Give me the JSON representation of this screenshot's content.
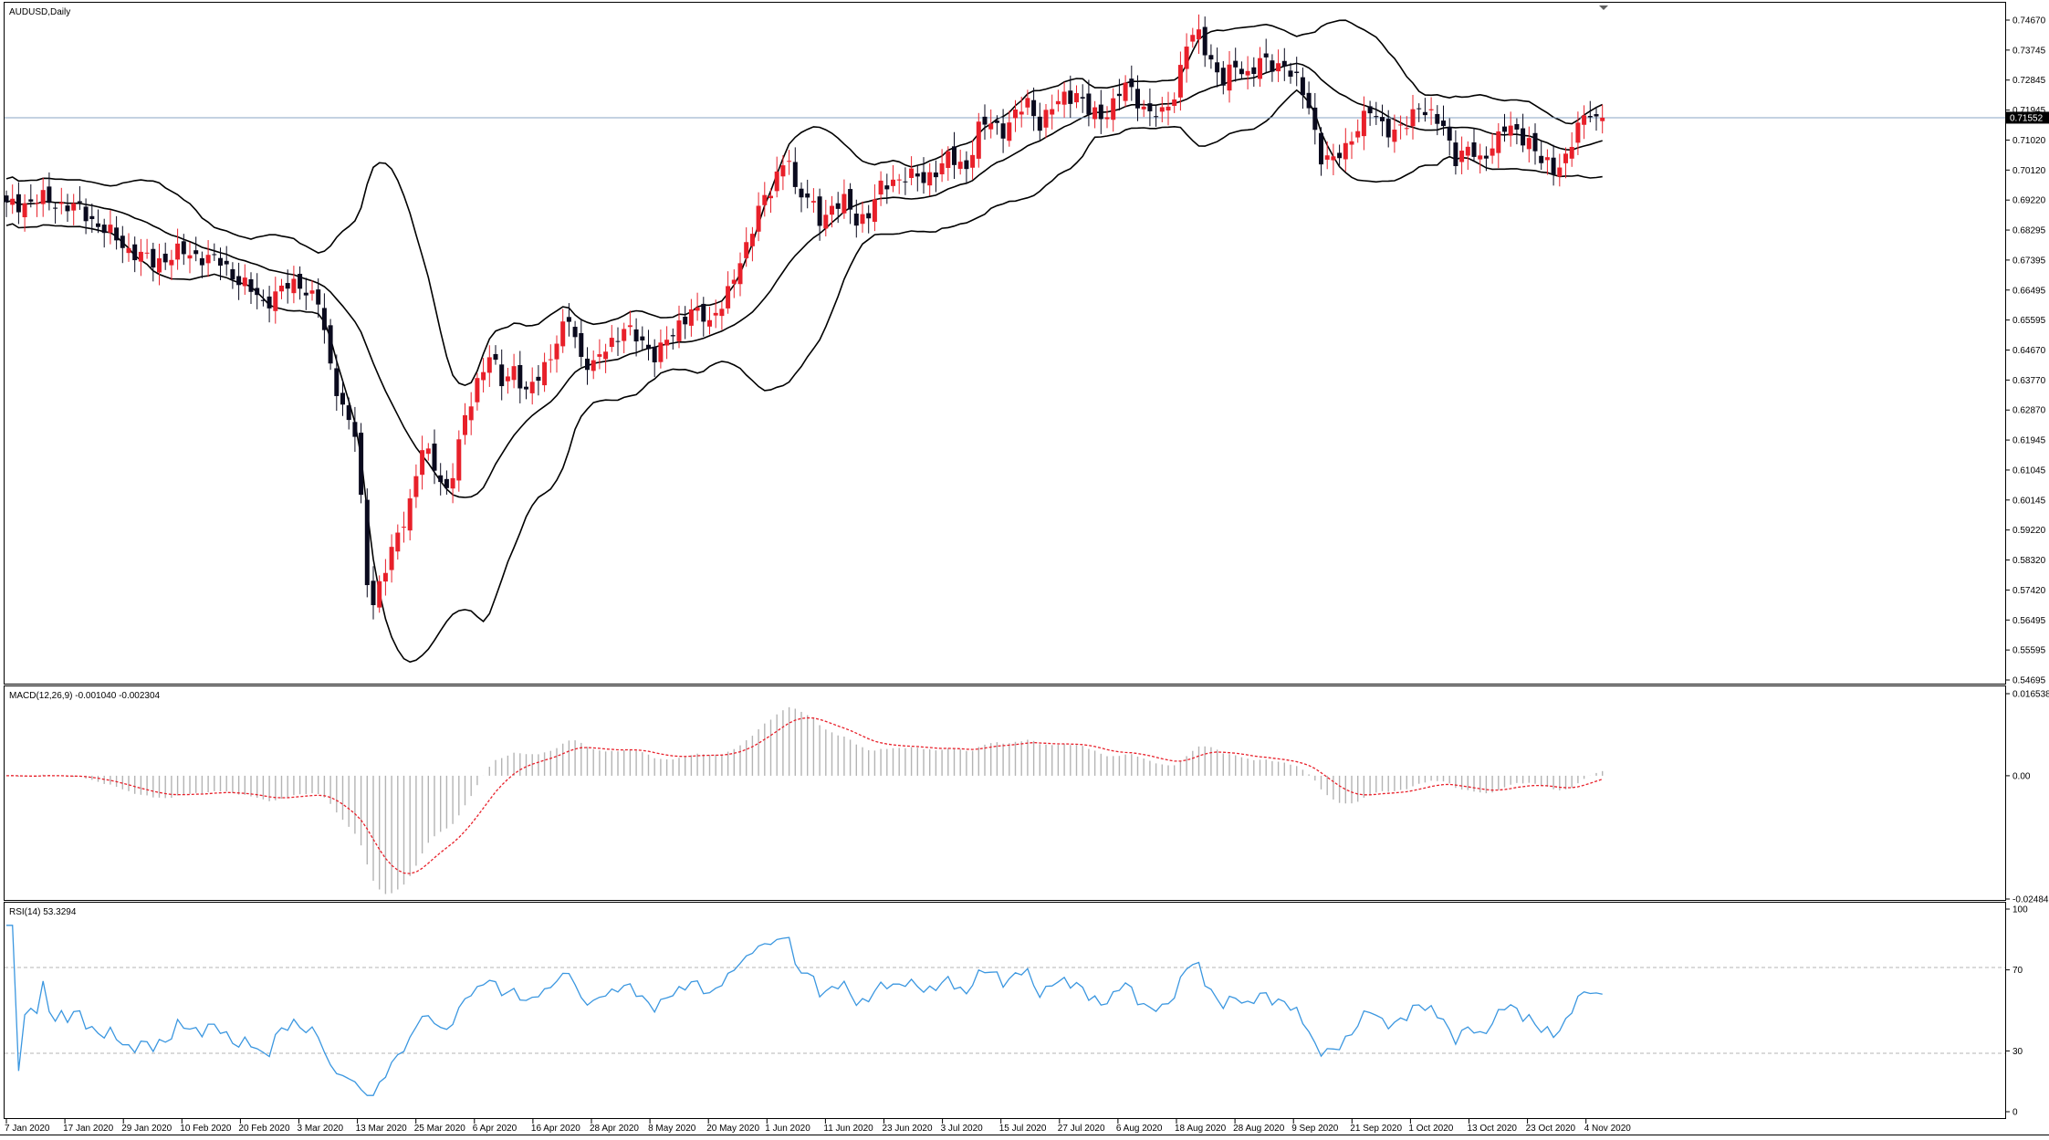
{
  "window": {
    "symbol_label": "AUDUSD,Daily",
    "current_price_label": "0.71552"
  },
  "colors": {
    "bull": "#e8202a",
    "bear": "#0a0a1e",
    "band": "#000000",
    "price_line": "#8aa6c4",
    "macd_signal": "#e8202a",
    "macd_hist": "#b4b4b4",
    "rsi_line": "#3b97e0",
    "level": "#b4b4b4"
  },
  "price_axis": {
    "labels": [
      "0.74670",
      "0.73745",
      "0.72845",
      "0.71945",
      "0.71020",
      "0.70120",
      "0.69220",
      "0.68295",
      "0.67395",
      "0.66495",
      "0.65595",
      "0.64670",
      "0.63770",
      "0.62870",
      "0.61945",
      "0.61045",
      "0.60145",
      "0.59220",
      "0.58320",
      "0.57420",
      "0.56495",
      "0.55595",
      "0.54695"
    ]
  },
  "macd": {
    "label": "MACD(12,26,9) -0.001040 -0.002304",
    "axis_labels": [
      "0.016538",
      "0.00",
      "-0.024849"
    ]
  },
  "rsi": {
    "label": "RSI(14) 53.3294",
    "axis_labels": [
      "100",
      "70",
      "30",
      "0"
    ]
  },
  "date_axis": {
    "labels": [
      "7 Jan 2020",
      "17 Jan 2020",
      "29 Jan 2020",
      "10 Feb 2020",
      "20 Feb 2020",
      "3 Mar 2020",
      "13 Mar 2020",
      "25 Mar 2020",
      "6 Apr 2020",
      "16 Apr 2020",
      "28 Apr 2020",
      "8 May 2020",
      "20 May 2020",
      "1 Jun 2020",
      "11 Jun 2020",
      "23 Jun 2020",
      "3 Jul 2020",
      "15 Jul 2020",
      "27 Jul 2020",
      "6 Aug 2020",
      "18 Aug 2020",
      "28 Aug 2020",
      "9 Sep 2020",
      "21 Sep 2020",
      "1 Oct 2020",
      "13 Oct 2020",
      "23 Oct 2020",
      "4 Nov 2020"
    ]
  },
  "chart_data": {
    "type": "candlestick",
    "symbol": "AUDUSD",
    "timeframe": "Daily",
    "y_range": [
      0.54695,
      0.7467
    ],
    "current_price": 0.71552,
    "close_anchors": [
      [
        0,
        0.689
      ],
      [
        6,
        0.691
      ],
      [
        12,
        0.688
      ],
      [
        16,
        0.682
      ],
      [
        20,
        0.676
      ],
      [
        24,
        0.672
      ],
      [
        28,
        0.675
      ],
      [
        32,
        0.674
      ],
      [
        35,
        0.672
      ],
      [
        38,
        0.667
      ],
      [
        42,
        0.66
      ],
      [
        45,
        0.664
      ],
      [
        48,
        0.666
      ],
      [
        51,
        0.66
      ],
      [
        53,
        0.641
      ],
      [
        55,
        0.629
      ],
      [
        57,
        0.62
      ],
      [
        58,
        0.6
      ],
      [
        59,
        0.577
      ],
      [
        60,
        0.571
      ],
      [
        62,
        0.58
      ],
      [
        64,
        0.59
      ],
      [
        66,
        0.601
      ],
      [
        68,
        0.616
      ],
      [
        70,
        0.611
      ],
      [
        72,
        0.604
      ],
      [
        73,
        0.609
      ],
      [
        75,
        0.625
      ],
      [
        77,
        0.637
      ],
      [
        79,
        0.644
      ],
      [
        81,
        0.636
      ],
      [
        83,
        0.641
      ],
      [
        85,
        0.632
      ],
      [
        87,
        0.638
      ],
      [
        89,
        0.645
      ],
      [
        92,
        0.655
      ],
      [
        94,
        0.644
      ],
      [
        96,
        0.641
      ],
      [
        98,
        0.646
      ],
      [
        101,
        0.653
      ],
      [
        103,
        0.649
      ],
      [
        106,
        0.645
      ],
      [
        109,
        0.65
      ],
      [
        112,
        0.659
      ],
      [
        115,
        0.653
      ],
      [
        117,
        0.661
      ],
      [
        119,
        0.667
      ],
      [
        121,
        0.676
      ],
      [
        123,
        0.69
      ],
      [
        125,
        0.693
      ],
      [
        127,
        0.701
      ],
      [
        128,
        0.705
      ],
      [
        129,
        0.694
      ],
      [
        131,
        0.691
      ],
      [
        133,
        0.685
      ],
      [
        135,
        0.689
      ],
      [
        137,
        0.69
      ],
      [
        139,
        0.685
      ],
      [
        141,
        0.687
      ],
      [
        143,
        0.694
      ],
      [
        145,
        0.697
      ],
      [
        147,
        0.698
      ],
      [
        150,
        0.697
      ],
      [
        152,
        0.7
      ],
      [
        154,
        0.703
      ],
      [
        157,
        0.701
      ],
      [
        159,
        0.712
      ],
      [
        161,
        0.714
      ],
      [
        163,
        0.712
      ],
      [
        165,
        0.716
      ],
      [
        167,
        0.72
      ],
      [
        169,
        0.714
      ],
      [
        171,
        0.718
      ],
      [
        173,
        0.722
      ],
      [
        175,
        0.723
      ],
      [
        177,
        0.717
      ],
      [
        179,
        0.716
      ],
      [
        181,
        0.72
      ],
      [
        183,
        0.725
      ],
      [
        185,
        0.721
      ],
      [
        187,
        0.717
      ],
      [
        189,
        0.716
      ],
      [
        191,
        0.723
      ],
      [
        193,
        0.738
      ],
      [
        195,
        0.74
      ],
      [
        197,
        0.733
      ],
      [
        199,
        0.726
      ],
      [
        201,
        0.731
      ],
      [
        203,
        0.729
      ],
      [
        205,
        0.732
      ],
      [
        207,
        0.731
      ],
      [
        209,
        0.732
      ],
      [
        211,
        0.726
      ],
      [
        213,
        0.719
      ],
      [
        215,
        0.704
      ],
      [
        217,
        0.702
      ],
      [
        219,
        0.707
      ],
      [
        221,
        0.713
      ],
      [
        223,
        0.717
      ],
      [
        225,
        0.714
      ],
      [
        227,
        0.711
      ],
      [
        229,
        0.713
      ],
      [
        231,
        0.72
      ],
      [
        233,
        0.716
      ],
      [
        235,
        0.712
      ],
      [
        237,
        0.704
      ],
      [
        239,
        0.706
      ],
      [
        241,
        0.702
      ],
      [
        243,
        0.708
      ],
      [
        245,
        0.712
      ],
      [
        247,
        0.711
      ],
      [
        249,
        0.709
      ],
      [
        251,
        0.702
      ],
      [
        253,
        0.7
      ],
      [
        255,
        0.704
      ],
      [
        257,
        0.712
      ],
      [
        259,
        0.718
      ],
      [
        260,
        0.7155
      ]
    ]
  }
}
